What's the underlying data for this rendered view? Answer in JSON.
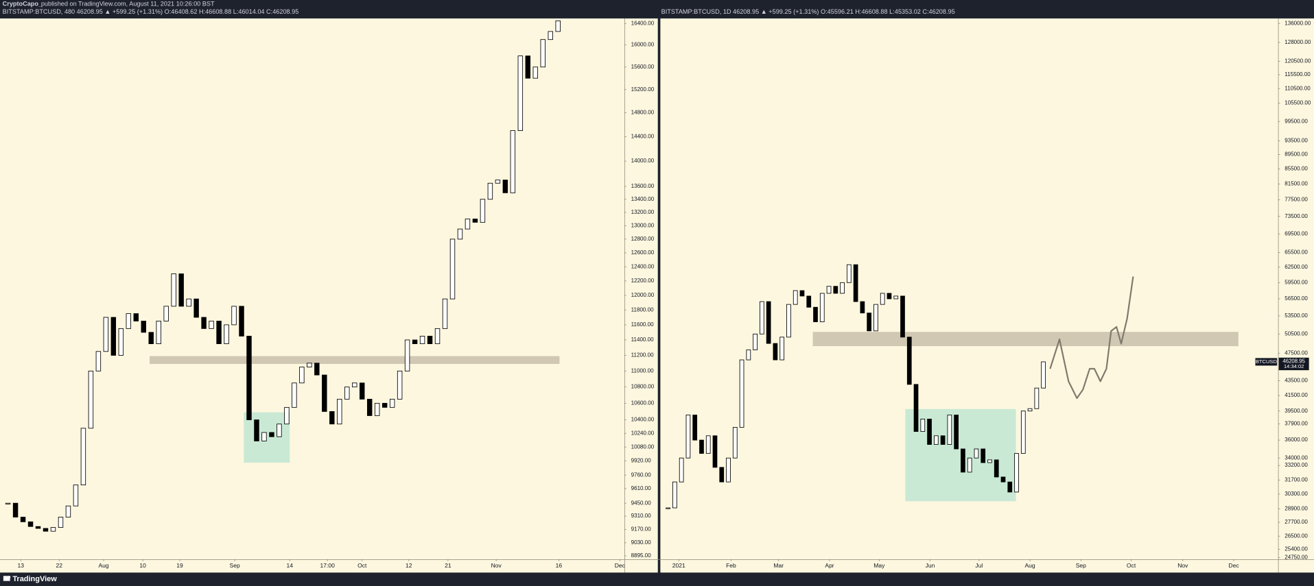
{
  "header": {
    "author": "CryptoCapo_",
    "published": "published on TradingView.com, August 11, 2021 10:26:00 BST"
  },
  "footer": {
    "brand": "TradingView"
  },
  "chart_data": [
    {
      "type": "candlestick",
      "title": "BITSTAMP:BTCUSD, 480  46208.95 ▲ +599.25 (+1.31%)  O:46408.62  H:46608.88  L:46014.04  C:46208.95",
      "log": true,
      "up_color": "#ffffff",
      "down_color": "#000000",
      "values": [
        9450,
        9300,
        9250,
        9200,
        9180,
        9150,
        9190,
        9300,
        9420,
        9650,
        10300,
        11000,
        11250,
        11700,
        11200,
        11550,
        11750,
        11650,
        11500,
        11350,
        11650,
        11850,
        12300,
        11850,
        11950,
        11700,
        11550,
        11650,
        11350,
        11600,
        11850,
        11450,
        10400,
        10150,
        10250,
        10200,
        10350,
        10550,
        10850,
        11050,
        11100,
        10950,
        10500,
        10350,
        10650,
        10800,
        10850,
        10650,
        10450,
        10600,
        10550,
        10650,
        11000,
        11400,
        11350,
        11450,
        11350,
        11550,
        11950,
        12800,
        12950,
        13100,
        13050,
        13400,
        13650,
        13700,
        13500,
        14500,
        15800,
        15400,
        15600,
        16100,
        16250,
        16450
      ],
      "xlim": [
        -0.5,
        81.8
      ],
      "xticks": [
        {
          "value": 1.7,
          "label": "13"
        },
        {
          "value": 6.8,
          "label": "22"
        },
        {
          "value": 12.7,
          "label": "Aug"
        },
        {
          "value": 17.9,
          "label": "10"
        },
        {
          "value": 22.8,
          "label": "19"
        },
        {
          "value": 30.1,
          "label": "Sep"
        },
        {
          "value": 37.4,
          "label": "14"
        },
        {
          "value": 42.4,
          "label": "17:00"
        },
        {
          "value": 47,
          "label": "Oct"
        },
        {
          "value": 53.2,
          "label": "12"
        },
        {
          "value": 58.4,
          "label": "21"
        },
        {
          "value": 64.8,
          "label": "Nov"
        },
        {
          "value": 73.1,
          "label": "16"
        },
        {
          "value": 81.2,
          "label": "Dec"
        }
      ],
      "ylim": [
        8861,
        16495
      ],
      "yticks": [
        {
          "value": 16400,
          "label": "16400.00"
        },
        {
          "value": 16000,
          "label": "16000.00"
        },
        {
          "value": 15600,
          "label": "15600.00"
        },
        {
          "value": 15200,
          "label": "15200.00"
        },
        {
          "value": 14800,
          "label": "14800.00"
        },
        {
          "value": 14400,
          "label": "14400.00"
        },
        {
          "value": 14000,
          "label": "14000.00"
        },
        {
          "value": 13600,
          "label": "13600.00"
        },
        {
          "value": 13400,
          "label": "13400.00"
        },
        {
          "value": 13200,
          "label": "13200.00"
        },
        {
          "value": 13000,
          "label": "13000.00"
        },
        {
          "value": 12800,
          "label": "12800.00"
        },
        {
          "value": 12600,
          "label": "12600.00"
        },
        {
          "value": 12400,
          "label": "12400.00"
        },
        {
          "value": 12200,
          "label": "12200.00"
        },
        {
          "value": 12000,
          "label": "12000.00"
        },
        {
          "value": 11800,
          "label": "11800.00"
        },
        {
          "value": 11600,
          "label": "11600.00"
        },
        {
          "value": 11400,
          "label": "11400.00"
        },
        {
          "value": 11200,
          "label": "11200.00"
        },
        {
          "value": 11000,
          "label": "11000.00"
        },
        {
          "value": 10800,
          "label": "10800.00"
        },
        {
          "value": 10600,
          "label": "10600.00"
        },
        {
          "value": 10400,
          "label": "10400.00"
        },
        {
          "value": 10240,
          "label": "10240.00"
        },
        {
          "value": 10080,
          "label": "10080.00"
        },
        {
          "value": 9920,
          "label": "9920.00"
        },
        {
          "value": 9760,
          "label": "9760.00"
        },
        {
          "value": 9610,
          "label": "9610.00"
        },
        {
          "value": 9450,
          "label": "9450.00"
        },
        {
          "value": 9310,
          "label": "9310.00"
        },
        {
          "value": 9170,
          "label": "9170.00"
        },
        {
          "value": 9030,
          "label": "9030.00"
        },
        {
          "value": 8895,
          "label": "8895.00"
        }
      ],
      "zones": [
        {
          "x": [
            18.8,
            73.2
          ],
          "y": [
            11090,
            11190
          ],
          "color": "#c9c0ab"
        },
        {
          "x": [
            31.3,
            37.4
          ],
          "y": [
            9900,
            10490
          ],
          "color": "#bfe6d2"
        }
      ]
    },
    {
      "type": "candlestick",
      "title": "BITSTAMP:BTCUSD, 1D  46208.95 ▲ +599.25 (+1.31%)  O:45596.21  H:46608.88  L:45353.02  C:46208.95",
      "log": true,
      "up_color": "#ffffff",
      "down_color": "#000000",
      "values": [
        29000,
        31500,
        34000,
        39000,
        36000,
        34500,
        36500,
        33000,
        31500,
        34000,
        37500,
        46500,
        48000,
        50500,
        56000,
        49000,
        46500,
        50000,
        55500,
        58000,
        57000,
        55000,
        52500,
        57500,
        58800,
        57500,
        59500,
        63000,
        56000,
        54000,
        51000,
        55500,
        57500,
        56500,
        57000,
        50000,
        43000,
        37000,
        38500,
        35500,
        36500,
        35500,
        39000,
        35000,
        32500,
        34000,
        35000,
        33500,
        33800,
        32000,
        31500,
        30500,
        34500,
        39500,
        39800,
        42500,
        46208.95
      ],
      "xlim": [
        -0.9,
        91
      ],
      "xticks": [
        {
          "value": 1.6,
          "label": "2021"
        },
        {
          "value": 9.4,
          "label": "Feb"
        },
        {
          "value": 16.5,
          "label": "Mar"
        },
        {
          "value": 24.1,
          "label": "Apr"
        },
        {
          "value": 31.5,
          "label": "May"
        },
        {
          "value": 39.1,
          "label": "Jun"
        },
        {
          "value": 46.4,
          "label": "Jul"
        },
        {
          "value": 54,
          "label": "Aug"
        },
        {
          "value": 61.6,
          "label": "Sep"
        },
        {
          "value": 69.1,
          "label": "Oct"
        },
        {
          "value": 76.8,
          "label": "Nov"
        },
        {
          "value": 84.4,
          "label": "Dec"
        }
      ],
      "ylim": [
        24620,
        138200
      ],
      "yticks": [
        {
          "value": 136000,
          "label": "136000.00"
        },
        {
          "value": 128000,
          "label": "128000.00"
        },
        {
          "value": 120500,
          "label": "120500.00"
        },
        {
          "value": 115500,
          "label": "115500.00"
        },
        {
          "value": 110500,
          "label": "110500.00"
        },
        {
          "value": 105500,
          "label": "105500.00"
        },
        {
          "value": 99500,
          "label": "99500.00"
        },
        {
          "value": 93500,
          "label": "93500.00"
        },
        {
          "value": 89500,
          "label": "89500.00"
        },
        {
          "value": 85500,
          "label": "85500.00"
        },
        {
          "value": 81500,
          "label": "81500.00"
        },
        {
          "value": 77500,
          "label": "77500.00"
        },
        {
          "value": 73500,
          "label": "73500.00"
        },
        {
          "value": 69500,
          "label": "69500.00"
        },
        {
          "value": 65500,
          "label": "65500.00"
        },
        {
          "value": 62500,
          "label": "62500.00"
        },
        {
          "value": 59500,
          "label": "59500.00"
        },
        {
          "value": 56500,
          "label": "56500.00"
        },
        {
          "value": 53500,
          "label": "53500.00"
        },
        {
          "value": 50500,
          "label": "50500.00"
        },
        {
          "value": 47500,
          "label": "47500.00"
        },
        {
          "value": 43500,
          "label": "43500.00"
        },
        {
          "value": 41500,
          "label": "41500.00"
        },
        {
          "value": 39500,
          "label": "39500.00"
        },
        {
          "value": 37900,
          "label": "37900.00"
        },
        {
          "value": 36000,
          "label": "36000.00"
        },
        {
          "value": 34000,
          "label": "34000.00"
        },
        {
          "value": 33200,
          "label": "33200.00"
        },
        {
          "value": 31700,
          "label": "31700.00"
        },
        {
          "value": 30300,
          "label": "30300.00"
        },
        {
          "value": 28900,
          "label": "28900.00"
        },
        {
          "value": 27700,
          "label": "27700.00"
        },
        {
          "value": 26500,
          "label": "26500.00"
        },
        {
          "value": 25400,
          "label": "25400.00"
        },
        {
          "value": 24750,
          "label": "24750.00"
        }
      ],
      "zones": [
        {
          "x": [
            21.6,
            85.1
          ],
          "y": [
            48580,
            50840
          ],
          "color": "#c9c0ab"
        },
        {
          "x": [
            35.4,
            51.9
          ],
          "y": [
            29620,
            39750
          ],
          "color": "#bfe6d2"
        }
      ],
      "projection": {
        "color": "#7f7a6c",
        "x": [
          57,
          58.4,
          59.75,
          61,
          61.9,
          62.9,
          63.6,
          64.5,
          65.4,
          66.1,
          66.9,
          67.6,
          68.5,
          69.4
        ],
        "values": [
          45200,
          49650,
          43430,
          41150,
          42300,
          45200,
          45200,
          43430,
          45200,
          50990,
          51660,
          48960,
          53060,
          60660
        ]
      },
      "last_price": {
        "symbol": "BTCUSD",
        "value": 46208.95,
        "countdown": "14:34:02"
      }
    }
  ]
}
